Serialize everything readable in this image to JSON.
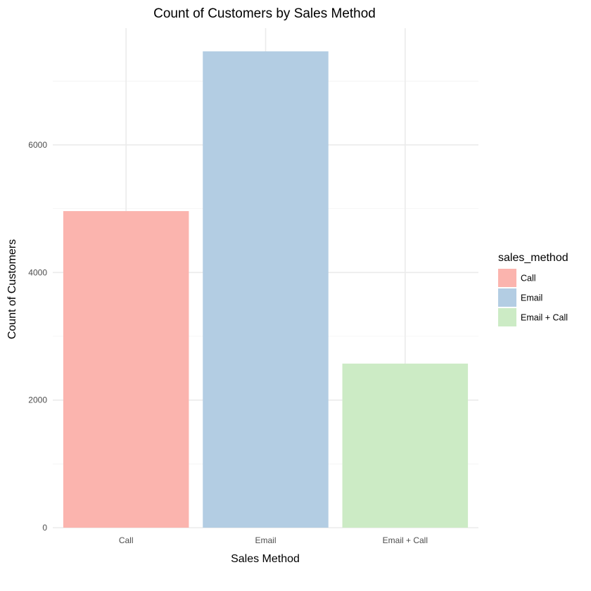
{
  "chart_data": {
    "type": "bar",
    "title": "Count of Customers by Sales Method",
    "xlabel": "Sales Method",
    "ylabel": "Count of Customers",
    "categories": [
      "Call",
      "Email",
      "Email + Call"
    ],
    "values": [
      4962,
      7466,
      2572
    ],
    "colors": [
      "#fbb4ae",
      "#b3cde3",
      "#ccebc5"
    ],
    "ylim": [
      0,
      7466
    ],
    "yticks": [
      0,
      2000,
      4000,
      6000
    ],
    "grid": true,
    "legend": {
      "title": "sales_method",
      "position": "right",
      "items": [
        "Call",
        "Email",
        "Email + Call"
      ]
    }
  }
}
